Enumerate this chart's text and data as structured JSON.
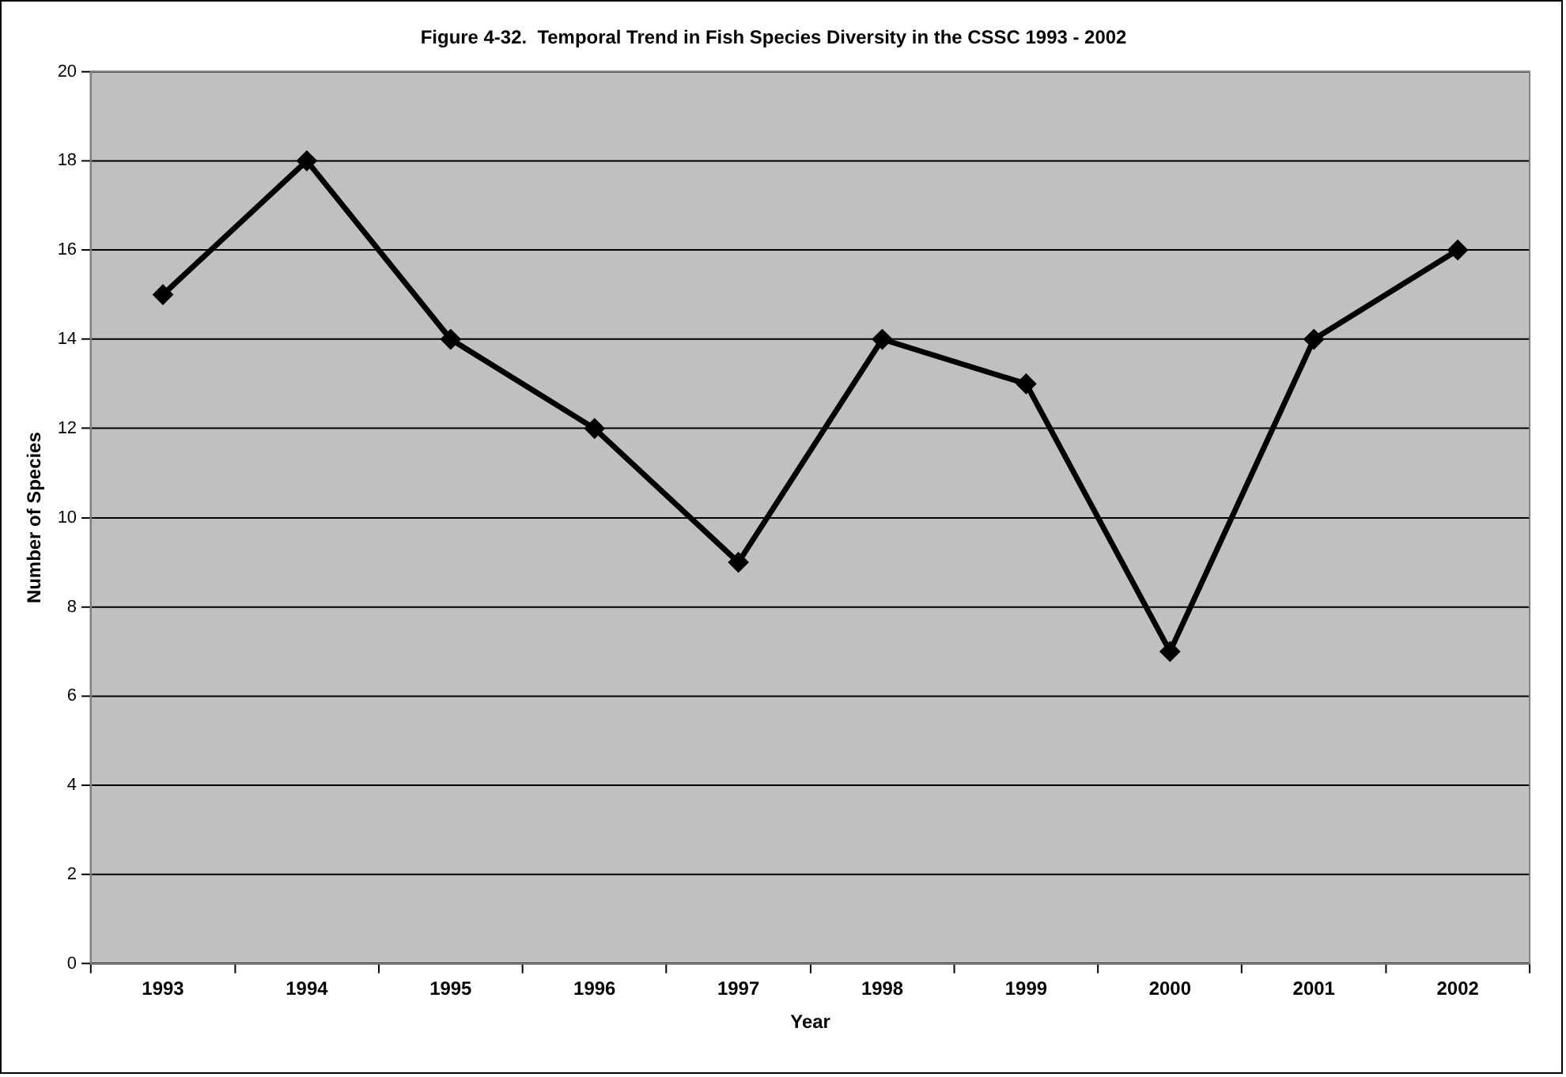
{
  "chart_data": {
    "type": "line",
    "title": "Figure 4-32.  Temporal Trend in Fish Species Diversity in the CSSC 1993 - 2002",
    "xlabel": "Year",
    "ylabel": "Number of Species",
    "categories": [
      "1993",
      "1994",
      "1995",
      "1996",
      "1997",
      "1998",
      "1999",
      "2000",
      "2001",
      "2002"
    ],
    "series": [
      {
        "color": "#000000",
        "values": [
          15,
          18,
          14,
          12,
          9,
          14,
          13,
          7,
          14,
          16
        ]
      }
    ],
    "ylim": [
      0,
      20
    ],
    "yticks": [
      0,
      2,
      4,
      6,
      8,
      10,
      12,
      14,
      16,
      18,
      20
    ],
    "grid": "y",
    "legend": false,
    "marker": "diamond",
    "line_style": "solid"
  }
}
